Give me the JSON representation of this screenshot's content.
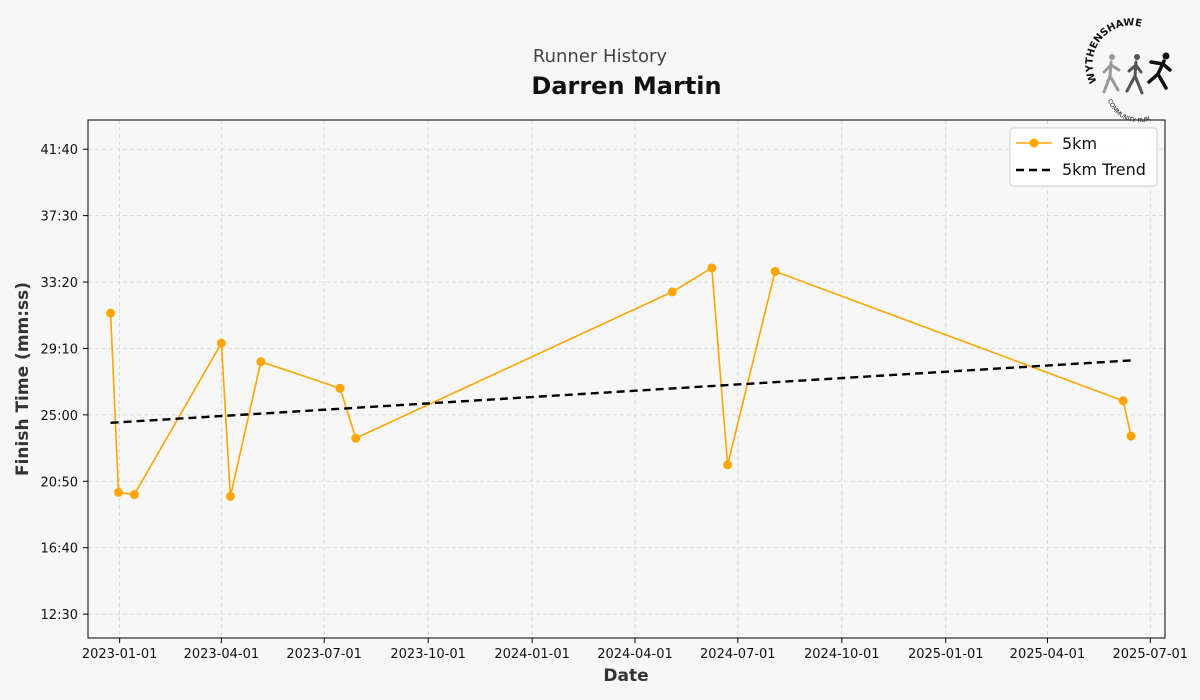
{
  "header": {
    "subtitle": "Runner History",
    "title": "Darren Martin"
  },
  "logo": {
    "top_text": "WYTHENSHAWE",
    "bottom_text": "COMMUNITY RUN"
  },
  "chart_data": {
    "type": "line",
    "title": "Darren Martin",
    "subtitle": "Runner History",
    "xlabel": "Date",
    "ylabel": "Finish Time (mm:ss)",
    "xlim": [
      "2022-12-04",
      "2025-07-14"
    ],
    "ylim_seconds": [
      660,
      2610
    ],
    "x_ticks": [
      {
        "date": "2023-01-01",
        "label": "2023-01-01"
      },
      {
        "date": "2023-04-01",
        "label": "2023-04-01"
      },
      {
        "date": "2023-07-01",
        "label": "2023-07-01"
      },
      {
        "date": "2023-10-01",
        "label": "2023-10-01"
      },
      {
        "date": "2024-01-01",
        "label": "2024-01-01"
      },
      {
        "date": "2024-04-01",
        "label": "2024-04-01"
      },
      {
        "date": "2024-07-01",
        "label": "2024-07-01"
      },
      {
        "date": "2024-10-01",
        "label": "2024-10-01"
      },
      {
        "date": "2025-01-01",
        "label": "2025-01-01"
      },
      {
        "date": "2025-04-01",
        "label": "2025-04-01"
      },
      {
        "date": "2025-07-01",
        "label": "2025-07-01"
      }
    ],
    "y_ticks": [
      {
        "seconds": 750,
        "label": "12:30"
      },
      {
        "seconds": 1000,
        "label": "16:40"
      },
      {
        "seconds": 1250,
        "label": "20:50"
      },
      {
        "seconds": 1500,
        "label": "25:00"
      },
      {
        "seconds": 1750,
        "label": "29:10"
      },
      {
        "seconds": 2000,
        "label": "33:20"
      },
      {
        "seconds": 2250,
        "label": "37:30"
      },
      {
        "seconds": 2500,
        "label": "41:40"
      }
    ],
    "series": [
      {
        "name": "5km",
        "color": "#FFA500",
        "style": "line-markers",
        "points": [
          {
            "x": "2022-12-24",
            "y": 1883
          },
          {
            "x": "2022-12-31",
            "y": 1208
          },
          {
            "x": "2023-01-14",
            "y": 1200
          },
          {
            "x": "2023-04-01",
            "y": 1770
          },
          {
            "x": "2023-04-09",
            "y": 1193
          },
          {
            "x": "2023-05-06",
            "y": 1700
          },
          {
            "x": "2023-07-15",
            "y": 1600
          },
          {
            "x": "2023-07-29",
            "y": 1412
          },
          {
            "x": "2024-05-04",
            "y": 1963
          },
          {
            "x": "2024-06-08",
            "y": 2053
          },
          {
            "x": "2024-06-22",
            "y": 1312
          },
          {
            "x": "2024-08-03",
            "y": 2040
          },
          {
            "x": "2025-06-07",
            "y": 1553
          },
          {
            "x": "2025-06-14",
            "y": 1420
          }
        ]
      },
      {
        "name": "5km Trend",
        "color": "#000000",
        "style": "dashed",
        "points": [
          {
            "x": "2022-12-24",
            "y": 1470
          },
          {
            "x": "2025-06-14",
            "y": 1705
          }
        ]
      }
    ],
    "grid": true,
    "legend_position": "top-right"
  }
}
